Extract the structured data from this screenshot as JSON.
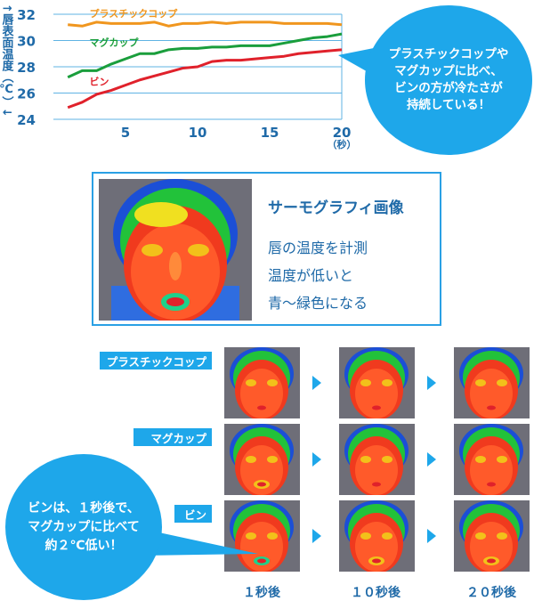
{
  "chart_data": {
    "type": "line",
    "ylabel": "↑唇表面温度（℃）↓",
    "x_unit": "（秒）",
    "xlim": [
      0,
      20
    ],
    "ylim": [
      24,
      32
    ],
    "x_ticks": [
      5,
      10,
      15,
      20
    ],
    "y_ticks": [
      24,
      26,
      28,
      30,
      32
    ],
    "series": [
      {
        "name": "プラスチックコップ",
        "color": "#f0961e",
        "x": [
          1,
          2,
          3,
          4,
          5,
          6,
          7,
          8,
          9,
          10,
          11,
          12,
          13,
          14,
          15,
          16,
          17,
          18,
          19,
          20
        ],
        "y": [
          31.2,
          31.1,
          31.4,
          31.3,
          31.3,
          31.3,
          31.4,
          31.1,
          31.3,
          31.3,
          31.4,
          31.3,
          31.4,
          31.4,
          31.4,
          31.3,
          31.3,
          31.3,
          31.3,
          31.2
        ]
      },
      {
        "name": "マグカップ",
        "color": "#1a9e3c",
        "x": [
          1,
          2,
          3,
          4,
          5,
          6,
          7,
          8,
          9,
          10,
          11,
          12,
          13,
          14,
          15,
          16,
          17,
          18,
          19,
          20
        ],
        "y": [
          27.2,
          27.7,
          27.7,
          28.2,
          28.6,
          29.0,
          29.0,
          29.3,
          29.4,
          29.4,
          29.5,
          29.5,
          29.6,
          29.6,
          29.6,
          29.8,
          30.0,
          30.2,
          30.3,
          30.5
        ]
      },
      {
        "name": "ビン",
        "color": "#e0212b",
        "x": [
          1,
          2,
          3,
          4,
          5,
          6,
          7,
          8,
          9,
          10,
          11,
          12,
          13,
          14,
          15,
          16,
          17,
          18,
          19,
          20
        ],
        "y": [
          24.9,
          25.3,
          25.9,
          26.2,
          26.6,
          27.0,
          27.3,
          27.6,
          27.9,
          28.0,
          28.4,
          28.5,
          28.5,
          28.6,
          28.7,
          28.8,
          29.0,
          29.1,
          29.2,
          29.3
        ]
      }
    ]
  },
  "callout_top": "プラスチックコップや\nマグカップに比べ、\nビンの方が冷たさが\n持続している！",
  "thermo_panel": {
    "title": "サーモグラフィ画像",
    "lines": [
      "唇の温度を計測",
      "温度が低いと",
      "青〜緑色になる"
    ]
  },
  "rows": [
    {
      "label": "プラスチックコップ"
    },
    {
      "label": "マグカップ"
    },
    {
      "label": "ビン"
    }
  ],
  "time_labels": [
    "１秒後",
    "１０秒後",
    "２０秒後"
  ],
  "callout_bottom": "ビンは、１秒後で、\nマグカップに比べて\n約２℃低い！",
  "colors": {
    "accent": "#1ea7ea",
    "text": "#1f6aa8",
    "grid": "#5fb3e3"
  }
}
